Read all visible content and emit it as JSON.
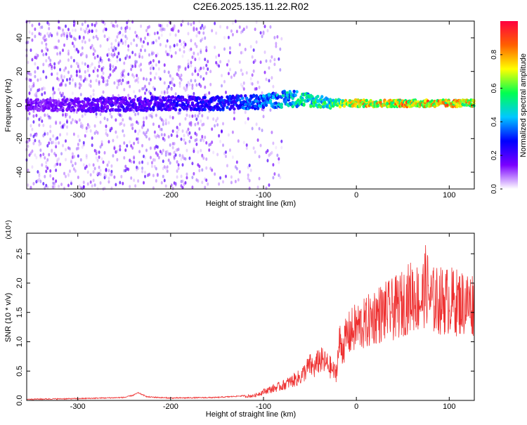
{
  "title": "C2E6.2025.135.11.22.R02",
  "chart_data": [
    {
      "type": "heatmap",
      "xlabel": "Height of straight line (km)",
      "ylabel": "Frequency (Hz)",
      "xlim": [
        -355,
        127
      ],
      "ylim": [
        -50,
        50
      ],
      "x_ticks": [
        -300,
        -200,
        -100,
        0,
        100
      ],
      "y_ticks": [
        -40,
        -20,
        0,
        20,
        40
      ],
      "grid": false,
      "colorbar": {
        "label": "Normalized spectral amplitude",
        "range": [
          0,
          1
        ],
        "ticks": [
          "0.0",
          "0.2",
          "0.4",
          "0.6",
          "0.8"
        ],
        "colors": [
          "#ffffff",
          "#7a00ff",
          "#0000ff",
          "#00c8ff",
          "#00ff50",
          "#ffff00",
          "#ff6000",
          "#ff0040"
        ]
      },
      "ridge": [
        {
          "x": -355,
          "f_center": 0,
          "f_halfwidth": 3,
          "amplitude": 0.15
        },
        {
          "x": -280,
          "f_center": 0,
          "f_halfwidth": 4,
          "amplitude": 0.2
        },
        {
          "x": -200,
          "f_center": 1,
          "f_halfwidth": 4,
          "amplitude": 0.25
        },
        {
          "x": -150,
          "f_center": 1,
          "f_halfwidth": 4,
          "amplitude": 0.3
        },
        {
          "x": -100,
          "f_center": 2,
          "f_halfwidth": 4,
          "amplitude": 0.4
        },
        {
          "x": -70,
          "f_center": 4,
          "f_halfwidth": 5,
          "amplitude": 0.5
        },
        {
          "x": -50,
          "f_center": 3,
          "f_halfwidth": 4,
          "amplitude": 0.55
        },
        {
          "x": -30,
          "f_center": 1,
          "f_halfwidth": 3,
          "amplitude": 0.6
        },
        {
          "x": -15,
          "f_center": 1,
          "f_halfwidth": 2,
          "amplitude": 0.7
        },
        {
          "x": 0,
          "f_center": 1,
          "f_halfwidth": 2,
          "amplitude": 0.8
        },
        {
          "x": 50,
          "f_center": 1,
          "f_halfwidth": 2,
          "amplitude": 0.85
        },
        {
          "x": 100,
          "f_center": 1,
          "f_halfwidth": 2,
          "amplitude": 0.85
        },
        {
          "x": 127,
          "f_center": 1,
          "f_halfwidth": 2,
          "amplitude": 0.8
        }
      ]
    },
    {
      "type": "line",
      "xlabel": "Height of straight line (km)",
      "ylabel": "SNR (10 * v/v)",
      "y_multiplier": "(x10⁴)",
      "xlim": [
        -355,
        127
      ],
      "ylim": [
        0,
        2.85
      ],
      "x_ticks": [
        -300,
        -200,
        -100,
        0,
        100
      ],
      "y_ticks": [
        "0.0",
        "0.5",
        "1.0",
        "1.5",
        "2.0",
        "2.5"
      ],
      "grid": false,
      "series": [
        {
          "color": "#ee3030",
          "x": [
            -355,
            -300,
            -250,
            -240,
            -235,
            -225,
            -200,
            -150,
            -110,
            -100,
            -80,
            -60,
            -50,
            -45,
            -40,
            -30,
            -22,
            -18,
            -15,
            -10,
            0,
            10,
            20,
            30,
            40,
            50,
            60,
            70,
            75,
            80,
            90,
            100,
            110,
            127
          ],
          "y": [
            0.01,
            0.02,
            0.04,
            0.08,
            0.12,
            0.05,
            0.03,
            0.04,
            0.08,
            0.15,
            0.25,
            0.4,
            0.6,
            0.55,
            0.7,
            0.6,
            0.45,
            1.0,
            0.9,
            1.1,
            1.25,
            1.3,
            1.45,
            1.5,
            1.55,
            1.65,
            1.8,
            1.7,
            2.0,
            1.7,
            1.7,
            1.7,
            1.67,
            1.65
          ]
        }
      ]
    }
  ]
}
